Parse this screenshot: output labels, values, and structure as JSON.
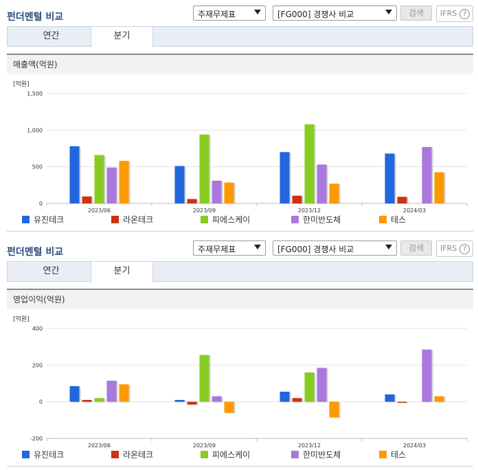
{
  "sections": [
    {
      "title": "펀더멘털 비교",
      "select1": "주재무제표",
      "select2": "[FG000] 경쟁사 비교",
      "search_label": "검색",
      "ifrs_label": "IFRS",
      "help_icon": "?",
      "tabs": [
        "연간",
        "분기"
      ],
      "active_tab": "분기",
      "panel_title": "매출액(억원)",
      "unit_label": "[억원]"
    },
    {
      "title": "펀더멘털 비교",
      "select1": "주재무제표",
      "select2": "[FG000] 경쟁사 비교",
      "search_label": "검색",
      "ifrs_label": "IFRS",
      "help_icon": "?",
      "tabs": [
        "연간",
        "분기"
      ],
      "active_tab": "분기",
      "panel_title": "영업이익(억원)",
      "unit_label": "[억원]"
    }
  ],
  "legend": [
    {
      "name": "유진테크",
      "color": "#2266dd"
    },
    {
      "name": "라온테크",
      "color": "#cc3311"
    },
    {
      "name": "피에스케이",
      "color": "#88cc22"
    },
    {
      "name": "한미반도체",
      "color": "#aa77dd"
    },
    {
      "name": "테스",
      "color": "#ff9900"
    }
  ],
  "chart_data": [
    {
      "type": "bar",
      "title": "매출액(억원)",
      "ylabel": "[억원]",
      "categories": [
        "2023/06",
        "2023/09",
        "2023/12",
        "2024/03"
      ],
      "ylim": [
        0,
        1500
      ],
      "yticks": [
        0,
        500,
        1000,
        1500
      ],
      "ytick_labels": [
        "0",
        "500",
        "1,000",
        "1,500"
      ],
      "grid": true,
      "legend_position": "bottom",
      "series": [
        {
          "name": "유진테크",
          "values": [
            780,
            510,
            700,
            680
          ]
        },
        {
          "name": "라온테크",
          "values": [
            95,
            60,
            105,
            90
          ]
        },
        {
          "name": "피에스케이",
          "values": [
            660,
            940,
            1080,
            null
          ]
        },
        {
          "name": "한미반도체",
          "values": [
            490,
            310,
            530,
            770
          ]
        },
        {
          "name": "테스",
          "values": [
            580,
            285,
            270,
            425
          ]
        }
      ]
    },
    {
      "type": "bar",
      "title": "영업이익(억원)",
      "ylabel": "[억원]",
      "categories": [
        "2023/06",
        "2023/09",
        "2023/12",
        "2024/03"
      ],
      "ylim": [
        -200,
        400
      ],
      "yticks": [
        -200,
        0,
        200,
        400
      ],
      "ytick_labels": [
        "-200",
        "0",
        "200",
        "400"
      ],
      "grid": true,
      "legend_position": "bottom",
      "series": [
        {
          "name": "유진테크",
          "values": [
            85,
            10,
            55,
            40
          ]
        },
        {
          "name": "라온테크",
          "values": [
            10,
            -15,
            20,
            -5
          ]
        },
        {
          "name": "피에스케이",
          "values": [
            20,
            255,
            160,
            null
          ]
        },
        {
          "name": "한미반도체",
          "values": [
            115,
            30,
            185,
            285
          ]
        },
        {
          "name": "테스",
          "values": [
            95,
            -60,
            -85,
            30
          ]
        }
      ]
    }
  ]
}
